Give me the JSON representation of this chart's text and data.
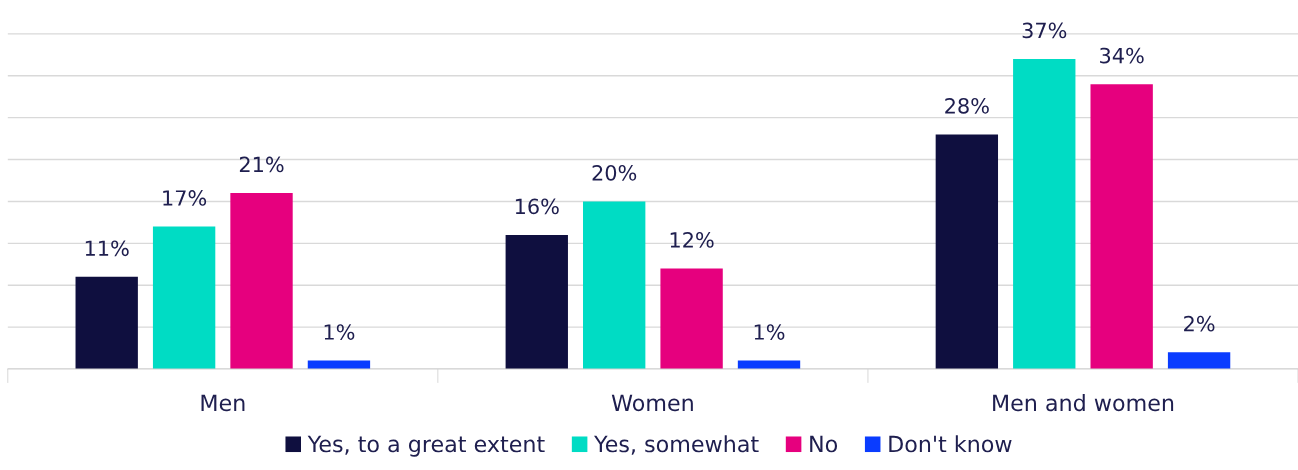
{
  "chart_data": {
    "type": "bar",
    "categories": [
      "Men",
      "Women",
      "Men and women"
    ],
    "series": [
      {
        "name": "Yes, to a great extent",
        "color": "#0f0f3f",
        "values": [
          11,
          16,
          28
        ],
        "value_labels": [
          "11%",
          "16%",
          "28%"
        ]
      },
      {
        "name": "Yes, somewhat",
        "color": "#00dcc4",
        "values": [
          17,
          20,
          37
        ],
        "value_labels": [
          "17%",
          "20%",
          "37%"
        ]
      },
      {
        "name": "No",
        "color": "#e6007e",
        "values": [
          21,
          12,
          34
        ],
        "value_labels": [
          "21%",
          "12%",
          "34%"
        ]
      },
      {
        "name": "Don't know",
        "color": "#0a3cff",
        "values": [
          1,
          1,
          2
        ],
        "value_labels": [
          "1%",
          "1%",
          "2%"
        ]
      }
    ],
    "tick_labels": "x",
    "grid": "y",
    "legend": "bottom"
  }
}
